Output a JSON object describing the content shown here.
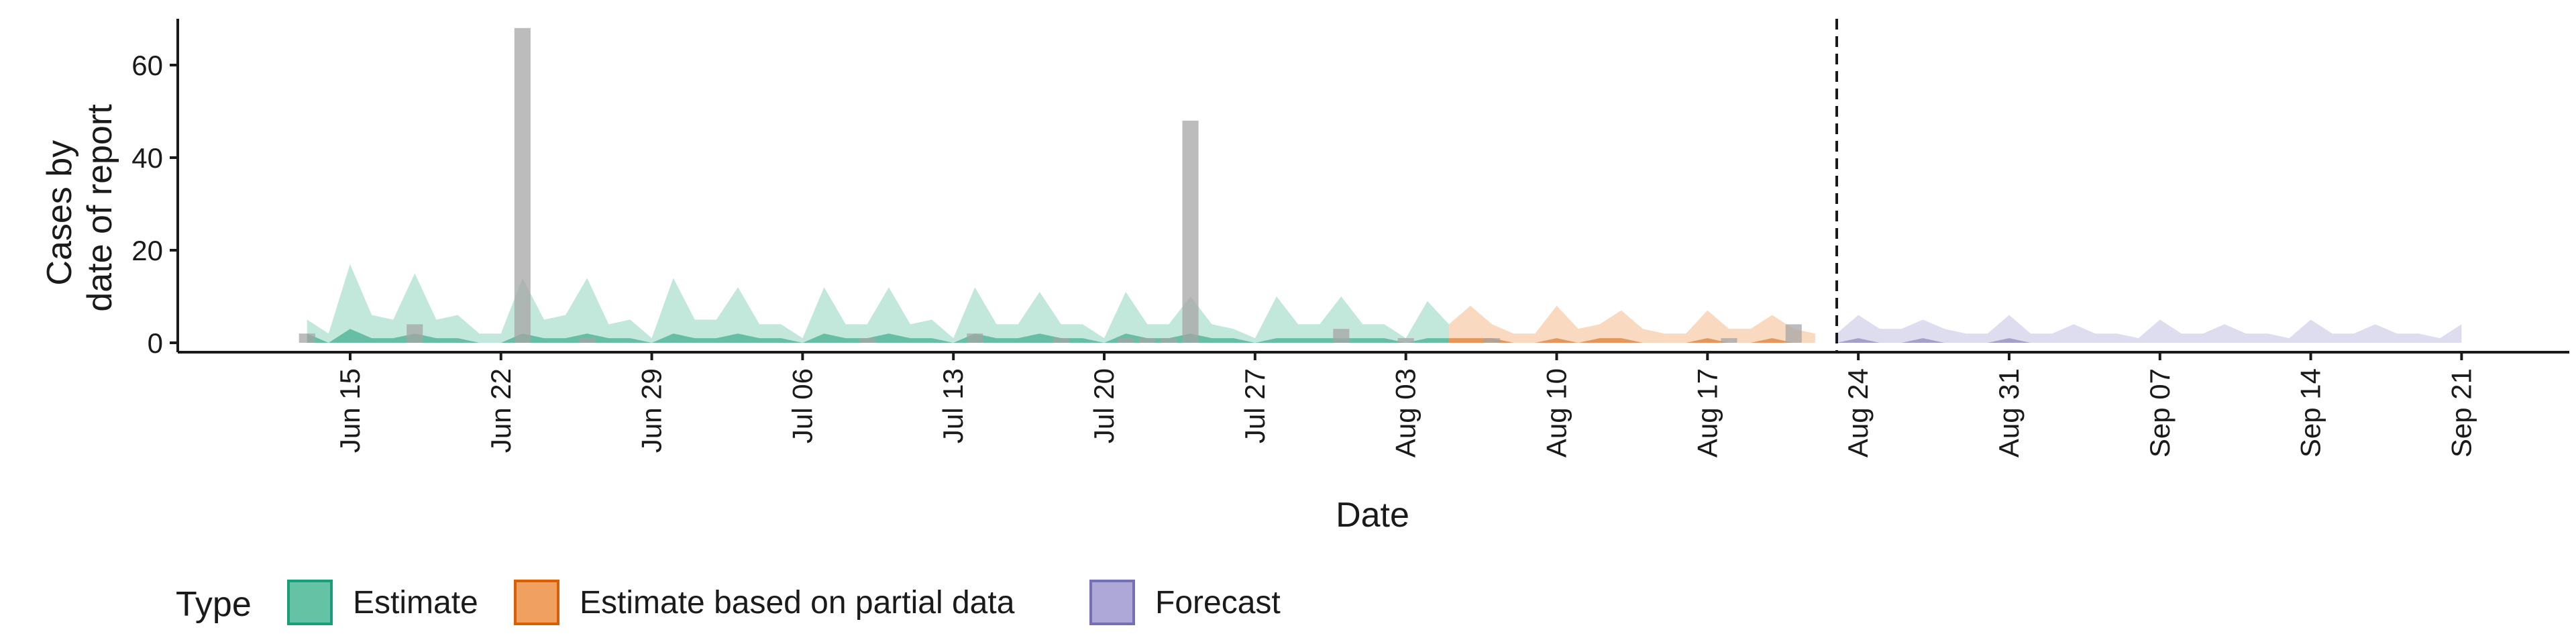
{
  "chart_data": {
    "type": "area",
    "title": "",
    "xlabel": "Date",
    "ylabel": [
      "Cases by",
      "date of report"
    ],
    "ylim": [
      0,
      70
    ],
    "yticks": [
      0,
      20,
      40,
      60
    ],
    "xlim": [
      "2020-06-07",
      "2020-09-26"
    ],
    "xticks": [
      {
        "date": "2020-06-15",
        "label": "Jun 15"
      },
      {
        "date": "2020-06-22",
        "label": "Jun 22"
      },
      {
        "date": "2020-06-29",
        "label": "Jun 29"
      },
      {
        "date": "2020-07-06",
        "label": "Jul 06"
      },
      {
        "date": "2020-07-13",
        "label": "Jul 13"
      },
      {
        "date": "2020-07-20",
        "label": "Jul 20"
      },
      {
        "date": "2020-07-27",
        "label": "Jul 27"
      },
      {
        "date": "2020-08-03",
        "label": "Aug 03"
      },
      {
        "date": "2020-08-10",
        "label": "Aug 10"
      },
      {
        "date": "2020-08-17",
        "label": "Aug 17"
      },
      {
        "date": "2020-08-24",
        "label": "Aug 24"
      },
      {
        "date": "2020-08-31",
        "label": "Aug 31"
      },
      {
        "date": "2020-09-07",
        "label": "Sep 07"
      },
      {
        "date": "2020-09-14",
        "label": "Sep 14"
      },
      {
        "date": "2020-09-21",
        "label": "Sep 21"
      }
    ],
    "forecast_start_line": "2020-08-23",
    "grid": false,
    "legend": {
      "position": "bottom",
      "title": "Type",
      "items": [
        {
          "label": "Estimate",
          "fill": "#66C2A5",
          "stroke": "#1B9E77"
        },
        {
          "label": "Estimate based on partial data",
          "fill": "#F0A060",
          "stroke": "#D95F02"
        },
        {
          "label": "Forecast",
          "fill": "#ADA8D8",
          "stroke": "#7570B3"
        }
      ]
    },
    "observed_cases": {
      "color": "#A6A6A6",
      "points": [
        {
          "date": "2020-06-13",
          "value": 2
        },
        {
          "date": "2020-06-18",
          "value": 4
        },
        {
          "date": "2020-06-23",
          "value": 68
        },
        {
          "date": "2020-06-26",
          "value": 1
        },
        {
          "date": "2020-07-09",
          "value": 1
        },
        {
          "date": "2020-07-14",
          "value": 2
        },
        {
          "date": "2020-07-18",
          "value": 1
        },
        {
          "date": "2020-07-21",
          "value": 1
        },
        {
          "date": "2020-07-22",
          "value": 1
        },
        {
          "date": "2020-07-23",
          "value": 1
        },
        {
          "date": "2020-07-24",
          "value": 48
        },
        {
          "date": "2020-07-31",
          "value": 3
        },
        {
          "date": "2020-08-03",
          "value": 1
        },
        {
          "date": "2020-08-07",
          "value": 1
        },
        {
          "date": "2020-08-18",
          "value": 1
        },
        {
          "date": "2020-08-21",
          "value": 4
        }
      ]
    },
    "series": [
      {
        "name": "Estimate",
        "start": "2020-06-13",
        "upper90": [
          5,
          2,
          17,
          6,
          5,
          15,
          5,
          6,
          2,
          2,
          14,
          5,
          6,
          14,
          4,
          5,
          1,
          14,
          5,
          5,
          12,
          4,
          4,
          1,
          12,
          4,
          4,
          12,
          4,
          5,
          1,
          12,
          4,
          4,
          11,
          4,
          4,
          1,
          11,
          4,
          4,
          10,
          4,
          3,
          1,
          10,
          4,
          4,
          10,
          4,
          4,
          1,
          9,
          4
        ],
        "upper50": [
          2,
          0,
          3,
          1,
          1,
          2,
          1,
          1,
          0,
          0,
          2,
          1,
          1,
          2,
          1,
          1,
          0,
          2,
          1,
          1,
          2,
          1,
          1,
          0,
          2,
          1,
          1,
          2,
          1,
          1,
          0,
          2,
          1,
          1,
          2,
          1,
          1,
          0,
          2,
          1,
          1,
          2,
          1,
          1,
          0,
          1,
          1,
          1,
          1,
          1,
          1,
          0,
          1,
          1
        ]
      },
      {
        "name": "Estimate based on partial data",
        "start": "2020-08-05",
        "upper90": [
          4,
          8,
          4,
          2,
          2,
          8,
          3,
          4,
          7,
          3,
          2,
          2,
          7,
          3,
          3,
          6,
          3,
          2
        ],
        "upper50": [
          1,
          1,
          1,
          0,
          0,
          1,
          0,
          1,
          1,
          0,
          0,
          0,
          1,
          0,
          0,
          1,
          0,
          0
        ]
      },
      {
        "name": "Forecast",
        "start": "2020-08-23",
        "upper90": [
          2,
          6,
          3,
          3,
          5,
          3,
          2,
          2,
          6,
          2,
          2,
          4,
          2,
          2,
          1,
          5,
          2,
          2,
          4,
          2,
          2,
          1,
          5,
          2,
          2,
          4,
          2,
          2,
          1,
          4
        ],
        "upper50": [
          0,
          1,
          0,
          0,
          1,
          0,
          0,
          0,
          1,
          0,
          0,
          0,
          0,
          0,
          0,
          0,
          0,
          0,
          0,
          0,
          0,
          0,
          0,
          0,
          0,
          0,
          0,
          0,
          0,
          0
        ]
      }
    ]
  }
}
